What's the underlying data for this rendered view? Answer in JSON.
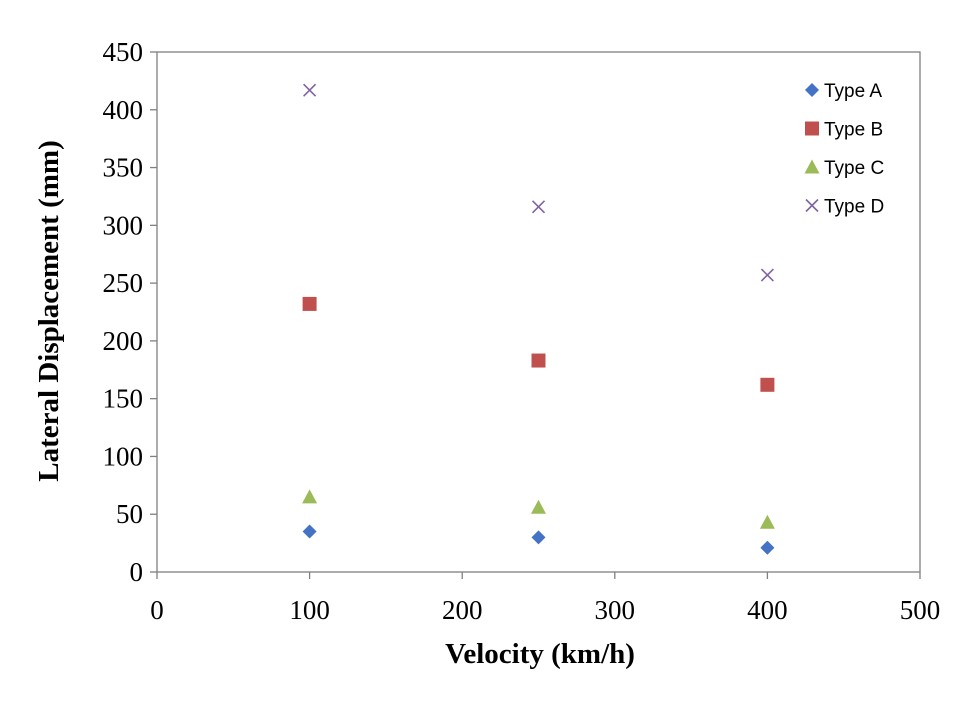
{
  "chart_data": {
    "type": "scatter",
    "title": "",
    "xlabel": "Velocity (km/h)",
    "ylabel": "Lateral Displacement (mm)",
    "xlim": [
      0,
      500
    ],
    "ylim": [
      0,
      450
    ],
    "xticks": [
      0,
      100,
      200,
      300,
      400,
      500
    ],
    "yticks": [
      0,
      50,
      100,
      150,
      200,
      250,
      300,
      350,
      400,
      450
    ],
    "grid": false,
    "legend_position": "top-right",
    "series": [
      {
        "name": "Type A",
        "marker": "diamond",
        "color": "#4472C4",
        "points": [
          [
            100,
            35
          ],
          [
            250,
            30
          ],
          [
            400,
            21
          ]
        ]
      },
      {
        "name": "Type B",
        "marker": "square",
        "color": "#C0504D",
        "points": [
          [
            100,
            232
          ],
          [
            250,
            183
          ],
          [
            400,
            162
          ]
        ]
      },
      {
        "name": "Type C",
        "marker": "triangle",
        "color": "#9BBB59",
        "points": [
          [
            100,
            65
          ],
          [
            250,
            56
          ],
          [
            400,
            43
          ]
        ]
      },
      {
        "name": "Type D",
        "marker": "x",
        "color": "#8064A2",
        "points": [
          [
            100,
            417
          ],
          [
            250,
            316
          ],
          [
            400,
            257
          ]
        ]
      }
    ]
  }
}
